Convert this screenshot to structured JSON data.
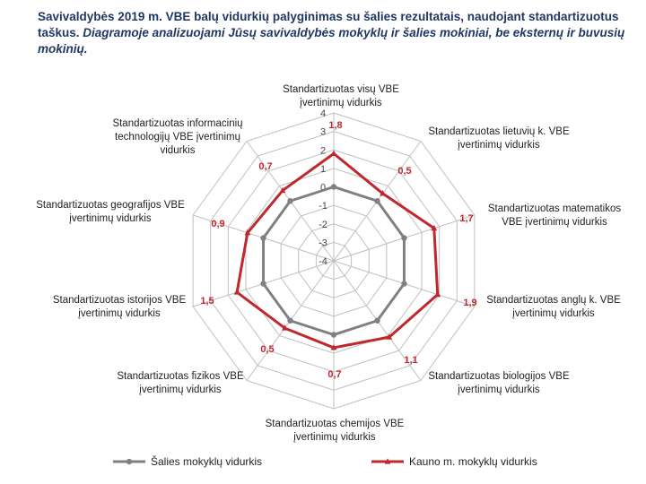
{
  "title": {
    "bold": "Savivaldybės 2019 m. VBE balų vidurkių palyginimas su šalies rezultatais, naudojant standartizuotus taškus.",
    "italic": "Diagramoje analizuojami Jūsų savivaldybės mokyklų ir šalies mokiniai, be eksternų ir buvusių mokinių."
  },
  "colors": {
    "national": "#808080",
    "kaunas": "#c0282d",
    "grid": "#bfbfbf",
    "title": "#1f3864"
  },
  "chart_data": {
    "type": "radar",
    "rmin": -4,
    "rmax": 4,
    "ticks": [
      "4",
      "3",
      "2",
      "1",
      "0",
      "-1",
      "-2",
      "-3",
      "-4"
    ],
    "tick_values": [
      4,
      3,
      2,
      1,
      0,
      -1,
      -2,
      -3,
      -4
    ],
    "axes": [
      [
        "Standartizuotas visų VBE",
        "įvertinimų vidurkis"
      ],
      [
        "Standartizuotas lietuvių k. VBE",
        "įvertinimų vidurkis"
      ],
      [
        "Standartizuotas matematikos",
        "VBE įvertinimų vidurkis"
      ],
      [
        "Standartizuotas anglų k. VBE",
        "įvertinimų vidurkis"
      ],
      [
        "Standartizuotas biologijos VBE",
        "įvertinimų vidurkis"
      ],
      [
        "Standartizuotas chemijos VBE",
        "įvertinimų vidurkis"
      ],
      [
        "Standartizuotas fizikos VBE",
        "įvertinimų vidurkis"
      ],
      [
        "Standartizuotas istorijos VBE",
        "įvertinimų vidurkis"
      ],
      [
        "Standartizuotas geografijos VBE",
        "įvertinimų vidurkis"
      ],
      [
        "Standartizuotas informacinių",
        "technologijų VBE įvertinimų",
        "vidurkis"
      ]
    ],
    "series": [
      {
        "name": "Šalies mokyklų vidurkis",
        "values": [
          0,
          0,
          0,
          0,
          0,
          0,
          0,
          0,
          0,
          0
        ]
      },
      {
        "name": "Kauno m. mokyklų vidurkis",
        "values": [
          1.8,
          0.5,
          1.7,
          1.9,
          1.1,
          0.7,
          0.5,
          1.5,
          0.9,
          0.7
        ]
      }
    ],
    "data_labels": [
      "1,8",
      "0,5",
      "1,7",
      "1,9",
      "1,1",
      "0,7",
      "0,5",
      "1,5",
      "0,9",
      "0,7"
    ],
    "legend": [
      "Šalies mokyklų vidurkis",
      "Kauno m. mokyklų vidurkis"
    ]
  }
}
